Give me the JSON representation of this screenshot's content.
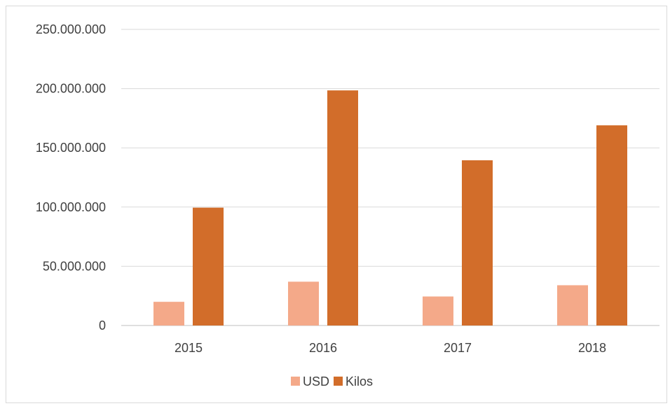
{
  "chart_data": {
    "type": "bar",
    "title": "",
    "categories": [
      "2015",
      "2016",
      "2017",
      "2018"
    ],
    "series": [
      {
        "name": "USD",
        "color": "#f4a989",
        "values": [
          20000000,
          37000000,
          24500000,
          34000000
        ]
      },
      {
        "name": "Kilos",
        "color": "#d26d2a",
        "values": [
          99500000,
          198500000,
          139500000,
          169000000
        ]
      }
    ],
    "ylim": [
      0,
      250000000
    ],
    "yticks": [
      0,
      50000000,
      100000000,
      150000000,
      200000000,
      250000000
    ],
    "ytick_labels": [
      "0",
      "50.000.000",
      "100.000.000",
      "150.000.000",
      "200.000.000",
      "250.000.000"
    ],
    "grid": true,
    "legend": "bottom-center"
  }
}
